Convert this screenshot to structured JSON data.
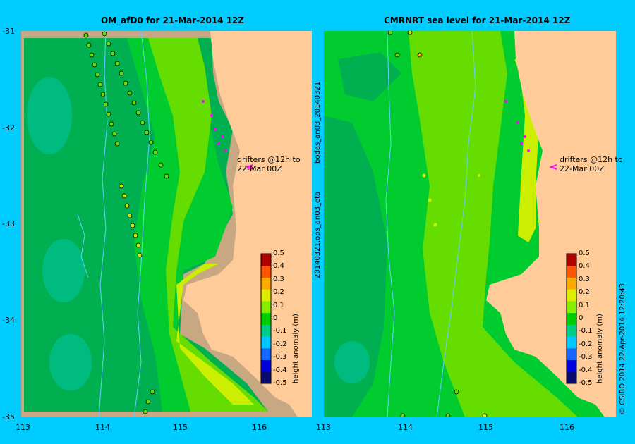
{
  "panels": [
    {
      "title": "OM_afD0 for 21-Mar-2014 12Z",
      "annotation": {
        "line1": "drifters @12h to",
        "line2": "22-Mar 00Z"
      }
    },
    {
      "title": "CMRNRT sea level  for 21-Mar-2014 12Z",
      "annotation": {
        "line1": "drifters @12h to",
        "line2": "22-Mar 00Z"
      }
    }
  ],
  "axes": {
    "longitude_ticks": [
      "113",
      "114",
      "115",
      "116"
    ],
    "latitude_ticks": [
      "-31",
      "-32",
      "-33",
      "-34",
      "-35"
    ]
  },
  "colorbar": {
    "label": "height anomaly (m)",
    "ticks": [
      "0.5",
      "0.4",
      "0.3",
      "0.2",
      "0.1",
      "0",
      "-0.1",
      "-0.2",
      "-0.3",
      "-0.4",
      "-0.5"
    ],
    "stops": [
      "#0a0a6e",
      "#0000dd",
      "#1466ff",
      "#00c8ff",
      "#00cc88",
      "#00cc00",
      "#88ee00",
      "#ddee00",
      "#ffaa00",
      "#ff5500",
      "#b00000"
    ]
  },
  "side_labels": {
    "left_top": "bodas_an03_20140321",
    "left_bottom": "20140321.obs_an03_eta",
    "right": "© CSIRO 2014   22-Apr-2014 12:20:43"
  },
  "colors": {
    "background": "#00ccff",
    "land": "#ffcc99",
    "coast_shelf": "#c8a882",
    "sea_dark": "#00b050",
    "sea_mid": "#00cc30",
    "sea_light": "#66dd00",
    "sea_yellow": "#ccee00",
    "drifter": "#ff00ff",
    "contour": "#66ccff"
  }
}
